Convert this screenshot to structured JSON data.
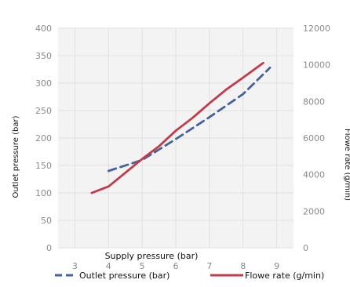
{
  "chart_data": {
    "type": "line",
    "title": "",
    "xlabel": "Supply pressure (bar)",
    "ylabel": "Outlet pressure (bar)",
    "y2label": "Flowe rate (g/min)",
    "xlim": [
      2.5,
      9.5
    ],
    "ylim": [
      0,
      400
    ],
    "y2lim": [
      0,
      12000
    ],
    "x_ticks": [
      "3",
      "4",
      "5",
      "6",
      "7",
      "8",
      "9"
    ],
    "y_ticks": [
      "0",
      "50",
      "100",
      "150",
      "200",
      "250",
      "300",
      "350",
      "400"
    ],
    "y2_ticks": [
      "0",
      "2000",
      "4000",
      "6000",
      "8000",
      "10000",
      "12000"
    ],
    "grid": true,
    "legend_position": "bottom",
    "series": [
      {
        "name": "Outlet pressure (bar)",
        "axis": "left",
        "style": "dashed",
        "color": "#44629c",
        "x": [
          4.0,
          5.0,
          6.0,
          7.0,
          8.0,
          8.8
        ],
        "y": [
          140,
          160,
          198,
          238,
          280,
          328
        ]
      },
      {
        "name": "Flowe rate (g/min)",
        "axis": "right",
        "style": "solid",
        "color": "#c23b4a",
        "x": [
          3.5,
          4.0,
          4.5,
          5.0,
          5.5,
          6.0,
          6.5,
          7.0,
          7.5,
          8.0,
          8.6
        ],
        "y": [
          3000,
          3350,
          4100,
          4850,
          5550,
          6400,
          7100,
          7900,
          8650,
          9300,
          10100
        ]
      }
    ]
  }
}
